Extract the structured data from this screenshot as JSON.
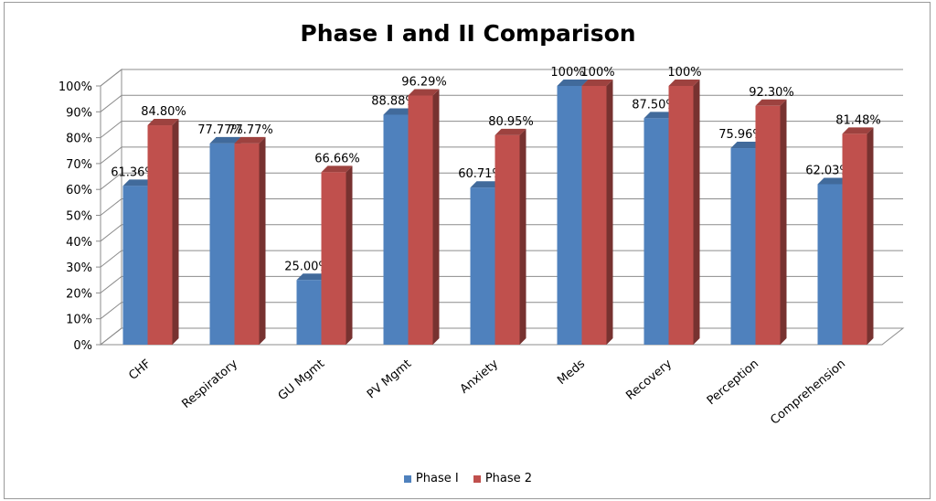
{
  "chart_data": {
    "type": "bar",
    "title": "Phase I and II Comparison",
    "categories": [
      "CHF",
      "Respiratory",
      "GU Mgmt",
      "PV Mgmt",
      "Anxiety",
      "Meds",
      "Recovery",
      "Perception",
      "Comprehension"
    ],
    "series": [
      {
        "name": "Phase I",
        "color": "#4f81bd",
        "values": [
          61.36,
          77.77,
          25.0,
          88.88,
          60.71,
          100,
          87.5,
          75.96,
          62.03
        ],
        "labels": [
          "61.36%",
          "77.77%",
          "25.00%",
          "88.88%",
          "60.71%",
          "100%",
          "87.50%",
          "75.96%",
          "62.03%"
        ]
      },
      {
        "name": "Phase 2",
        "color": "#c0504d",
        "values": [
          84.8,
          77.77,
          66.66,
          96.29,
          80.95,
          100,
          100,
          92.3,
          81.48
        ],
        "labels": [
          "84.80%",
          "77.77%",
          "66.66%",
          "96.29%",
          "80.95%",
          "100%",
          "100%",
          "92.30%",
          "81.48%"
        ]
      }
    ],
    "yticks": [
      "0%",
      "10%",
      "20%",
      "30%",
      "40%",
      "50%",
      "60%",
      "70%",
      "80%",
      "90%",
      "100%"
    ],
    "ylim": [
      0,
      100
    ],
    "grid": true,
    "legend_position": "bottom"
  }
}
